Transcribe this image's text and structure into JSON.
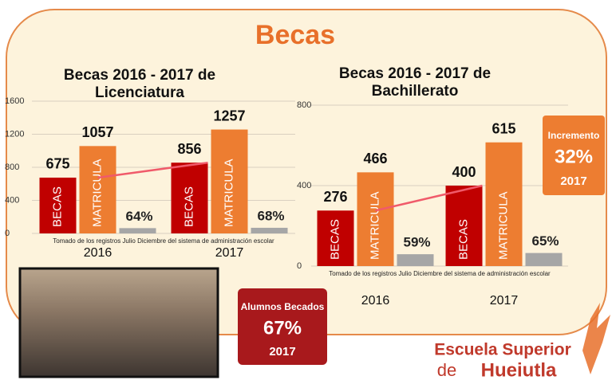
{
  "header": {
    "title": "Becas"
  },
  "chart_data": [
    {
      "type": "bar",
      "title": "Becas 2016 - 2017 de Licenciatura",
      "categories": [
        "2016",
        "2017"
      ],
      "series": [
        {
          "name": "BECAS",
          "color": "#c00000",
          "values": [
            675,
            856
          ]
        },
        {
          "name": "MATRICULA",
          "color": "#ed7d31",
          "values": [
            1057,
            1257
          ]
        },
        {
          "color": "#a6a6a6",
          "values": [
            64,
            68
          ],
          "value_labels": [
            "64%",
            "68%"
          ]
        }
      ],
      "ylim": [
        0,
        1600
      ],
      "yticks": [
        0,
        400,
        800,
        1200,
        1600
      ],
      "grid": true,
      "note": "Tomado de los registros Julio Diciembre del sistema de administración escolar"
    },
    {
      "type": "bar",
      "title": "Becas 2016 - 2017 de Bachillerato",
      "categories": [
        "2016",
        "2017"
      ],
      "series": [
        {
          "name": "BECAS",
          "color": "#c00000",
          "values": [
            276,
            400
          ]
        },
        {
          "name": "MATRICULA",
          "color": "#ed7d31",
          "values": [
            466,
            615
          ]
        },
        {
          "color": "#a6a6a6",
          "values": [
            59,
            65
          ],
          "value_labels": [
            "59%",
            "65%"
          ]
        }
      ],
      "ylim": [
        0,
        800
      ],
      "yticks": [
        0,
        400,
        800
      ],
      "grid": true,
      "note": "Tomado de los registros Julio Diciembre del sistema de administración escolar"
    }
  ],
  "callouts": [
    {
      "title": "Incremento",
      "value": "32%",
      "year": "2017"
    },
    {
      "title": "Alumnos Becados",
      "value": "67%",
      "year": "2017"
    }
  ],
  "logo": {
    "line1": "Escuela Superior",
    "line2a": "de",
    "line2b": "Hueiutla"
  }
}
